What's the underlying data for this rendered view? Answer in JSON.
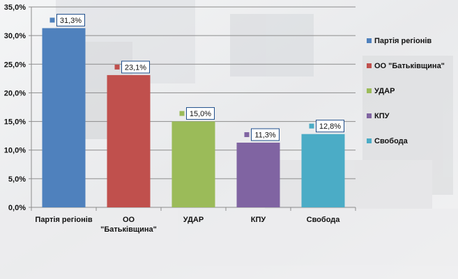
{
  "chart_data": {
    "type": "bar",
    "categories": [
      "Партія  регіонів",
      "ОО \"Батьківщина\"",
      "УДАР",
      "КПУ",
      "Свобода"
    ],
    "category_lines": [
      [
        "Партія  регіонів"
      ],
      [
        "ОО",
        "\"Батьківщина\""
      ],
      [
        "УДАР"
      ],
      [
        "КПУ"
      ],
      [
        "Свобода"
      ]
    ],
    "values": [
      31.3,
      23.1,
      15.0,
      11.3,
      12.8
    ],
    "data_labels": [
      "31,3%",
      "23,1%",
      "15,0%",
      "11,3%",
      "12,8%"
    ],
    "colors": [
      "#4f81bd",
      "#c0504d",
      "#9bbb59",
      "#8064a2",
      "#4bacc6"
    ],
    "legend": {
      "placement": "right",
      "entries": [
        "Партія регіонів",
        "ОО \"Батьківщина\"",
        "УДАР",
        "КПУ",
        "Свобода"
      ]
    },
    "ylim": [
      0,
      35
    ],
    "y_step": 5,
    "y_tick_labels": [
      "0,0%",
      "5,0%",
      "10,0%",
      "15,0%",
      "20,0%",
      "25,0%",
      "30,0%",
      "35,0%"
    ],
    "grid": true,
    "title": "",
    "xlabel": "",
    "ylabel": ""
  }
}
